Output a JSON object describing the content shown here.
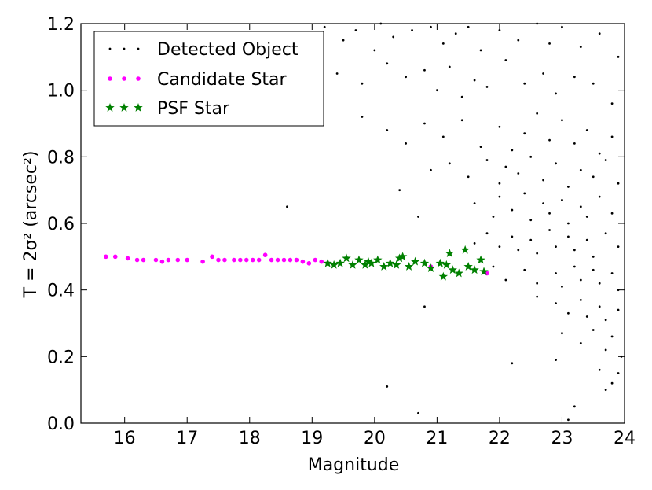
{
  "chart_data": {
    "type": "scatter",
    "title": "",
    "xlabel": "Magnitude",
    "ylabel": "T = 2σ² (arcsec²)",
    "xlim": [
      15.3,
      24
    ],
    "ylim": [
      0,
      1.2
    ],
    "xticks": [
      16,
      17,
      18,
      19,
      20,
      21,
      22,
      23,
      24
    ],
    "yticks": [
      0.0,
      0.2,
      0.4,
      0.6,
      0.8,
      1.0,
      1.2
    ],
    "ytick_labels": [
      "0.0",
      "0.2",
      "0.4",
      "0.6",
      "0.8",
      "1.0",
      "1.2"
    ],
    "xtick_labels": [
      "16",
      "17",
      "18",
      "19",
      "20",
      "21",
      "22",
      "23",
      "24"
    ],
    "legend_position": "top-left",
    "series": [
      {
        "name": "Detected Object",
        "marker": "dot",
        "color": "#000000",
        "points": [
          [
            19.2,
            1.19
          ],
          [
            19.5,
            1.15
          ],
          [
            19.7,
            1.18
          ],
          [
            20.0,
            1.12
          ],
          [
            20.1,
            1.2
          ],
          [
            20.3,
            1.16
          ],
          [
            20.6,
            1.18
          ],
          [
            20.9,
            1.19
          ],
          [
            21.1,
            1.14
          ],
          [
            21.3,
            1.17
          ],
          [
            21.5,
            1.19
          ],
          [
            21.7,
            1.12
          ],
          [
            22.0,
            1.18
          ],
          [
            22.3,
            1.15
          ],
          [
            22.6,
            1.2
          ],
          [
            22.8,
            1.14
          ],
          [
            23.0,
            1.19
          ],
          [
            23.3,
            1.13
          ],
          [
            23.6,
            1.17
          ],
          [
            23.9,
            1.1
          ],
          [
            19.4,
            1.05
          ],
          [
            19.8,
            1.02
          ],
          [
            20.2,
            1.08
          ],
          [
            20.5,
            1.04
          ],
          [
            20.8,
            1.06
          ],
          [
            21.0,
            1.0
          ],
          [
            21.2,
            1.07
          ],
          [
            21.4,
            0.98
          ],
          [
            21.6,
            1.03
          ],
          [
            21.8,
            1.01
          ],
          [
            22.1,
            1.09
          ],
          [
            22.4,
            1.02
          ],
          [
            22.7,
            1.05
          ],
          [
            22.9,
            0.99
          ],
          [
            23.2,
            1.04
          ],
          [
            23.5,
            1.02
          ],
          [
            23.8,
            0.96
          ],
          [
            19.8,
            0.92
          ],
          [
            20.2,
            0.88
          ],
          [
            20.5,
            0.84
          ],
          [
            20.8,
            0.9
          ],
          [
            21.1,
            0.86
          ],
          [
            21.4,
            0.91
          ],
          [
            21.7,
            0.83
          ],
          [
            22.0,
            0.89
          ],
          [
            22.2,
            0.82
          ],
          [
            22.4,
            0.87
          ],
          [
            22.6,
            0.93
          ],
          [
            22.8,
            0.85
          ],
          [
            23.0,
            0.91
          ],
          [
            23.2,
            0.84
          ],
          [
            23.4,
            0.88
          ],
          [
            23.6,
            0.81
          ],
          [
            23.8,
            0.86
          ],
          [
            21.2,
            0.78
          ],
          [
            21.5,
            0.74
          ],
          [
            21.8,
            0.79
          ],
          [
            22.0,
            0.72
          ],
          [
            22.1,
            0.77
          ],
          [
            22.3,
            0.75
          ],
          [
            22.5,
            0.8
          ],
          [
            22.7,
            0.73
          ],
          [
            22.9,
            0.78
          ],
          [
            23.1,
            0.71
          ],
          [
            23.3,
            0.76
          ],
          [
            23.5,
            0.74
          ],
          [
            23.7,
            0.79
          ],
          [
            23.9,
            0.72
          ],
          [
            20.4,
            0.7
          ],
          [
            20.9,
            0.76
          ],
          [
            21.6,
            0.66
          ],
          [
            21.9,
            0.62
          ],
          [
            22.0,
            0.68
          ],
          [
            22.2,
            0.64
          ],
          [
            22.4,
            0.69
          ],
          [
            22.5,
            0.61
          ],
          [
            22.7,
            0.66
          ],
          [
            22.8,
            0.63
          ],
          [
            23.0,
            0.67
          ],
          [
            23.1,
            0.6
          ],
          [
            23.3,
            0.65
          ],
          [
            23.4,
            0.62
          ],
          [
            23.6,
            0.68
          ],
          [
            23.8,
            0.63
          ],
          [
            18.6,
            0.65
          ],
          [
            20.7,
            0.62
          ],
          [
            21.8,
            0.57
          ],
          [
            22.0,
            0.53
          ],
          [
            22.2,
            0.56
          ],
          [
            22.3,
            0.52
          ],
          [
            22.5,
            0.55
          ],
          [
            22.6,
            0.51
          ],
          [
            22.8,
            0.58
          ],
          [
            22.9,
            0.53
          ],
          [
            23.1,
            0.56
          ],
          [
            23.2,
            0.52
          ],
          [
            23.4,
            0.55
          ],
          [
            23.5,
            0.5
          ],
          [
            23.7,
            0.57
          ],
          [
            23.9,
            0.53
          ],
          [
            21.6,
            0.54
          ],
          [
            21.9,
            0.47
          ],
          [
            22.1,
            0.43
          ],
          [
            22.4,
            0.46
          ],
          [
            22.6,
            0.42
          ],
          [
            22.9,
            0.45
          ],
          [
            23.0,
            0.41
          ],
          [
            23.2,
            0.47
          ],
          [
            23.3,
            0.43
          ],
          [
            23.5,
            0.46
          ],
          [
            23.6,
            0.42
          ],
          [
            23.8,
            0.45
          ],
          [
            23.9,
            0.4
          ],
          [
            22.9,
            0.36
          ],
          [
            23.1,
            0.33
          ],
          [
            23.3,
            0.37
          ],
          [
            23.4,
            0.32
          ],
          [
            23.6,
            0.35
          ],
          [
            23.7,
            0.31
          ],
          [
            23.9,
            0.34
          ],
          [
            20.8,
            0.35
          ],
          [
            22.6,
            0.38
          ],
          [
            23.0,
            0.27
          ],
          [
            23.3,
            0.24
          ],
          [
            23.5,
            0.28
          ],
          [
            23.7,
            0.22
          ],
          [
            23.8,
            0.26
          ],
          [
            23.95,
            0.2
          ],
          [
            23.6,
            0.16
          ],
          [
            23.9,
            0.15
          ],
          [
            22.2,
            0.18
          ],
          [
            22.9,
            0.19
          ],
          [
            23.8,
            0.12
          ],
          [
            20.2,
            0.11
          ],
          [
            23.7,
            0.1
          ],
          [
            20.7,
            0.03
          ],
          [
            23.1,
            0.01
          ],
          [
            23.2,
            0.05
          ]
        ]
      },
      {
        "name": "Candidate Star",
        "marker": "circle",
        "color": "#ff00ff",
        "points": [
          [
            15.7,
            0.5
          ],
          [
            15.85,
            0.5
          ],
          [
            16.05,
            0.495
          ],
          [
            16.2,
            0.49
          ],
          [
            16.3,
            0.49
          ],
          [
            16.5,
            0.49
          ],
          [
            16.6,
            0.485
          ],
          [
            16.7,
            0.49
          ],
          [
            16.85,
            0.49
          ],
          [
            17.0,
            0.49
          ],
          [
            17.25,
            0.485
          ],
          [
            17.4,
            0.5
          ],
          [
            17.5,
            0.49
          ],
          [
            17.6,
            0.49
          ],
          [
            17.75,
            0.49
          ],
          [
            17.85,
            0.49
          ],
          [
            17.95,
            0.49
          ],
          [
            18.05,
            0.49
          ],
          [
            18.15,
            0.49
          ],
          [
            18.25,
            0.505
          ],
          [
            18.35,
            0.49
          ],
          [
            18.45,
            0.49
          ],
          [
            18.55,
            0.49
          ],
          [
            18.65,
            0.49
          ],
          [
            18.75,
            0.49
          ],
          [
            18.85,
            0.485
          ],
          [
            18.95,
            0.48
          ],
          [
            19.05,
            0.49
          ],
          [
            19.15,
            0.485
          ],
          [
            19.25,
            0.48
          ],
          [
            20.9,
            0.47
          ],
          [
            21.8,
            0.45
          ]
        ]
      },
      {
        "name": "PSF Star",
        "marker": "star",
        "color": "#008000",
        "points": [
          [
            19.25,
            0.48
          ],
          [
            19.35,
            0.475
          ],
          [
            19.45,
            0.48
          ],
          [
            19.55,
            0.495
          ],
          [
            19.65,
            0.475
          ],
          [
            19.75,
            0.49
          ],
          [
            19.85,
            0.475
          ],
          [
            19.95,
            0.48
          ],
          [
            20.05,
            0.49
          ],
          [
            20.15,
            0.47
          ],
          [
            20.25,
            0.48
          ],
          [
            20.35,
            0.475
          ],
          [
            20.45,
            0.5
          ],
          [
            20.55,
            0.47
          ],
          [
            20.65,
            0.485
          ],
          [
            20.8,
            0.48
          ],
          [
            20.9,
            0.465
          ],
          [
            21.05,
            0.48
          ],
          [
            21.1,
            0.44
          ],
          [
            21.2,
            0.51
          ],
          [
            21.25,
            0.46
          ],
          [
            21.35,
            0.45
          ],
          [
            21.45,
            0.52
          ],
          [
            21.5,
            0.47
          ],
          [
            21.6,
            0.46
          ],
          [
            21.7,
            0.49
          ],
          [
            21.75,
            0.455
          ],
          [
            21.15,
            0.475
          ],
          [
            20.4,
            0.495
          ],
          [
            19.9,
            0.485
          ]
        ]
      }
    ]
  }
}
